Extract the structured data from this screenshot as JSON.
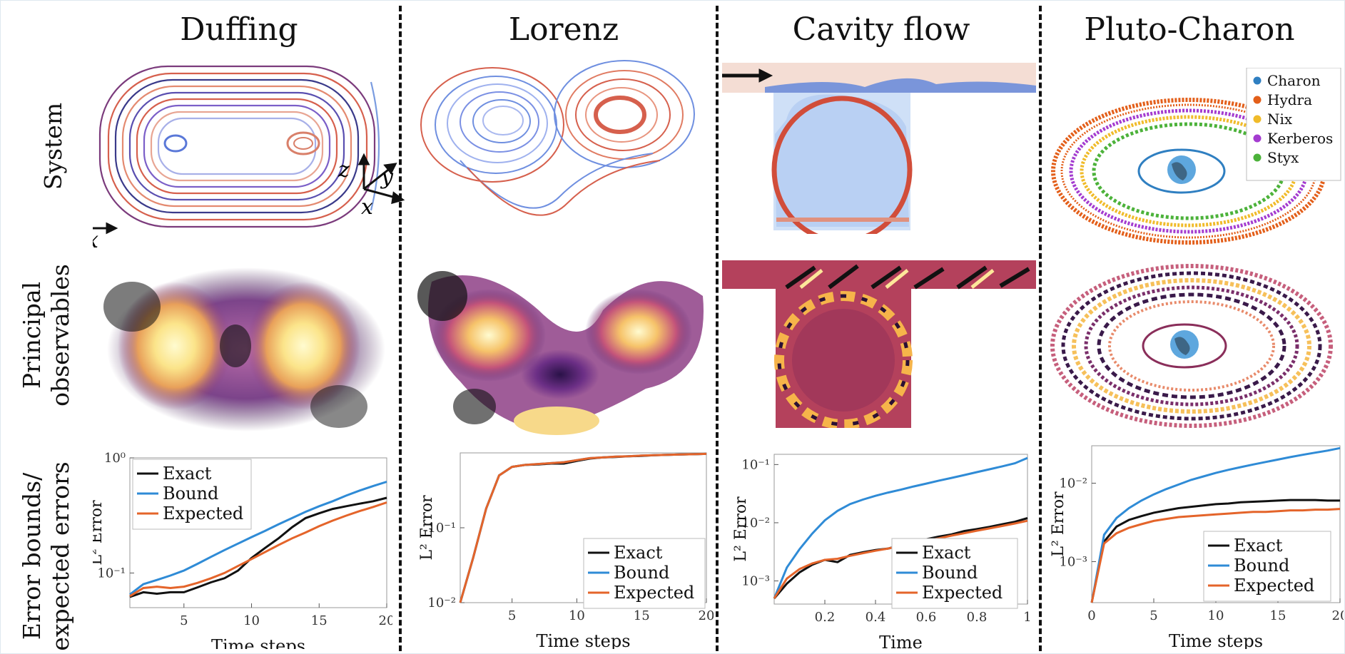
{
  "columns": [
    "Duffing",
    "Lorenz",
    "Cavity flow",
    "Pluto-Charon"
  ],
  "rows": [
    "System",
    "Principal\nobservables",
    "Error bounds/\nexpected errors"
  ],
  "row_labels": {
    "system": "System",
    "principal_1": "Principal",
    "principal_2": "observables",
    "error_1": "Error bounds/",
    "error_2": "expected errors"
  },
  "axes_labels": {
    "duffing_x": "x",
    "duffing_y": "y",
    "lorenz_x": "x",
    "lorenz_y": "y",
    "lorenz_z": "z"
  },
  "pluto_legend": [
    {
      "name": "Charon",
      "color": "#2f7fc1"
    },
    {
      "name": "Hydra",
      "color": "#e35f1a"
    },
    {
      "name": "Nix",
      "color": "#f0bb2a"
    },
    {
      "name": "Kerberos",
      "color": "#a43cd0"
    },
    {
      "name": "Styx",
      "color": "#4cb23a"
    }
  ],
  "colors": {
    "exact": "#111111",
    "bound": "#2f8bd6",
    "expected": "#e4642a"
  },
  "chart_data": [
    {
      "type": "line",
      "panel": "Duffing",
      "xlabel": "Time steps",
      "ylabel": "L² Error",
      "yscale": "log",
      "ylim": [
        0.05,
        1
      ],
      "xlim": [
        1,
        20
      ],
      "xticks": [
        "5",
        "10",
        "15",
        "20"
      ],
      "yticks": [
        "10⁻¹",
        "10⁰"
      ],
      "legend": "top-left",
      "x": [
        1,
        2,
        3,
        4,
        5,
        6,
        7,
        8,
        9,
        10,
        11,
        12,
        13,
        14,
        15,
        16,
        17,
        18,
        19,
        20
      ],
      "series": [
        {
          "name": "Exact",
          "values": [
            0.062,
            0.068,
            0.066,
            0.068,
            0.068,
            0.075,
            0.083,
            0.09,
            0.105,
            0.135,
            0.165,
            0.2,
            0.25,
            0.3,
            0.33,
            0.36,
            0.38,
            0.4,
            0.42,
            0.45
          ]
        },
        {
          "name": "Bound",
          "values": [
            0.065,
            0.08,
            0.087,
            0.095,
            0.105,
            0.12,
            0.138,
            0.158,
            0.18,
            0.205,
            0.232,
            0.265,
            0.3,
            0.34,
            0.38,
            0.42,
            0.47,
            0.52,
            0.57,
            0.62
          ]
        },
        {
          "name": "Expected",
          "values": [
            0.063,
            0.074,
            0.076,
            0.074,
            0.076,
            0.082,
            0.09,
            0.1,
            0.115,
            0.132,
            0.152,
            0.175,
            0.2,
            0.225,
            0.255,
            0.285,
            0.315,
            0.345,
            0.375,
            0.41
          ]
        }
      ]
    },
    {
      "type": "line",
      "panel": "Lorenz",
      "xlabel": "Time steps",
      "ylabel": "L² Error",
      "yscale": "log",
      "ylim": [
        0.01,
        1
      ],
      "xlim": [
        1,
        20
      ],
      "xticks": [
        "5",
        "10",
        "15",
        "20"
      ],
      "yticks": [
        "10⁻²",
        "10⁻¹"
      ],
      "legend": "bottom-right",
      "x": [
        1,
        2,
        3,
        4,
        5,
        6,
        7,
        8,
        9,
        10,
        11,
        12,
        13,
        14,
        15,
        16,
        17,
        18,
        19,
        20
      ],
      "series": [
        {
          "name": "Exact",
          "values": [
            0.01,
            0.04,
            0.18,
            0.5,
            0.65,
            0.69,
            0.7,
            0.72,
            0.72,
            0.78,
            0.84,
            0.87,
            0.88,
            0.9,
            0.91,
            0.93,
            0.94,
            0.95,
            0.96,
            0.97
          ]
        },
        {
          "name": "Bound",
          "values": [
            0.01,
            0.04,
            0.18,
            0.5,
            0.65,
            0.69,
            0.71,
            0.73,
            0.75,
            0.8,
            0.85,
            0.87,
            0.89,
            0.9,
            0.92,
            0.93,
            0.94,
            0.95,
            0.96,
            0.97
          ]
        },
        {
          "name": "Expected",
          "values": [
            0.01,
            0.04,
            0.18,
            0.5,
            0.65,
            0.69,
            0.71,
            0.73,
            0.75,
            0.8,
            0.85,
            0.87,
            0.89,
            0.9,
            0.92,
            0.93,
            0.94,
            0.95,
            0.96,
            0.97
          ]
        }
      ]
    },
    {
      "type": "line",
      "panel": "Cavity flow",
      "xlabel": "Time",
      "ylabel": "L² Error",
      "yscale": "log",
      "ylim": [
        0.0004,
        0.15
      ],
      "xlim": [
        0,
        1
      ],
      "xticks": [
        "0.2",
        "0.4",
        "0.6",
        "0.8",
        "1"
      ],
      "yticks": [
        "10⁻³",
        "10⁻²",
        "10⁻¹"
      ],
      "legend": "bottom-right",
      "x": [
        0,
        0.05,
        0.1,
        0.15,
        0.2,
        0.25,
        0.3,
        0.35,
        0.4,
        0.45,
        0.5,
        0.55,
        0.6,
        0.65,
        0.7,
        0.75,
        0.8,
        0.85,
        0.9,
        0.95,
        1
      ],
      "series": [
        {
          "name": "Exact",
          "values": [
            0.0005,
            0.0009,
            0.0014,
            0.0019,
            0.0023,
            0.0021,
            0.0028,
            0.0031,
            0.0034,
            0.0036,
            0.0041,
            0.0046,
            0.0052,
            0.0058,
            0.0063,
            0.0072,
            0.0078,
            0.0085,
            0.0094,
            0.0104,
            0.012
          ]
        },
        {
          "name": "Bound",
          "values": [
            0.0005,
            0.0017,
            0.0035,
            0.0065,
            0.011,
            0.016,
            0.021,
            0.025,
            0.029,
            0.033,
            0.037,
            0.042,
            0.047,
            0.053,
            0.059,
            0.066,
            0.074,
            0.083,
            0.093,
            0.105,
            0.13
          ]
        },
        {
          "name": "Expected",
          "values": [
            0.0005,
            0.0011,
            0.0016,
            0.002,
            0.0023,
            0.0024,
            0.0027,
            0.003,
            0.0033,
            0.0036,
            0.004,
            0.0044,
            0.0049,
            0.0054,
            0.006,
            0.0066,
            0.0073,
            0.008,
            0.0088,
            0.0097,
            0.0108
          ]
        }
      ]
    },
    {
      "type": "line",
      "panel": "Pluto-Charon",
      "xlabel": "Time steps",
      "ylabel": "L² Error",
      "yscale": "log",
      "ylim": [
        0.0003,
        0.03
      ],
      "xlim": [
        0,
        20
      ],
      "xticks": [
        "0",
        "5",
        "10",
        "15",
        "20"
      ],
      "yticks": [
        "10⁻³",
        "10⁻²"
      ],
      "legend": "bottom-right",
      "x": [
        0,
        1,
        2,
        3,
        4,
        5,
        6,
        7,
        8,
        9,
        10,
        11,
        12,
        13,
        14,
        15,
        16,
        17,
        18,
        19,
        20
      ],
      "series": [
        {
          "name": "Exact",
          "values": [
            0.0003,
            0.0018,
            0.0028,
            0.0034,
            0.0038,
            0.0042,
            0.0045,
            0.0048,
            0.005,
            0.0052,
            0.0054,
            0.0055,
            0.0057,
            0.0058,
            0.0059,
            0.006,
            0.0061,
            0.0061,
            0.0061,
            0.006,
            0.006
          ]
        },
        {
          "name": "Bound",
          "values": [
            0.0003,
            0.0022,
            0.0036,
            0.0048,
            0.006,
            0.0072,
            0.0084,
            0.0096,
            0.011,
            0.0122,
            0.0135,
            0.0148,
            0.016,
            0.0173,
            0.0186,
            0.02,
            0.0215,
            0.023,
            0.0245,
            0.026,
            0.028
          ]
        },
        {
          "name": "Expected",
          "values": [
            0.0003,
            0.0017,
            0.0023,
            0.0027,
            0.003,
            0.0033,
            0.0035,
            0.0037,
            0.0038,
            0.0039,
            0.004,
            0.0041,
            0.0042,
            0.0043,
            0.0043,
            0.0044,
            0.0045,
            0.0045,
            0.0046,
            0.0046,
            0.0047
          ]
        }
      ]
    }
  ]
}
